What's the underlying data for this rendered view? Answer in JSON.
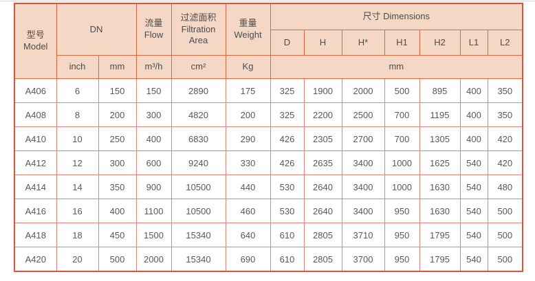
{
  "table": {
    "header": {
      "model": "型号\nModel",
      "dn": "DN",
      "flow": "流量\nFlow",
      "filtration": "过滤面积\nFiltration\nArea",
      "weight": "重量\nWeight",
      "dimensions": "尺寸 Dimensions",
      "dim_cols": [
        "D",
        "H",
        "H*",
        "H1",
        "H2",
        "L1",
        "L2"
      ],
      "units": {
        "inch": "inch",
        "mm": "mm",
        "flow": "m³/h",
        "area": "cm²",
        "weight": "Kg",
        "dims": "mm"
      }
    },
    "rows": [
      {
        "model": "A406",
        "dn_inch": "6",
        "dn_mm": "150",
        "flow": "150",
        "area": "2890",
        "weight": "175",
        "d": "325",
        "h": "1900",
        "h_star": "2000",
        "h1": "500",
        "h2": "895",
        "l1": "400",
        "l2": "350"
      },
      {
        "model": "A408",
        "dn_inch": "8",
        "dn_mm": "200",
        "flow": "300",
        "area": "4820",
        "weight": "200",
        "d": "325",
        "h": "2200",
        "h_star": "2500",
        "h1": "700",
        "h2": "1195",
        "l1": "400",
        "l2": "350"
      },
      {
        "model": "A410",
        "dn_inch": "10",
        "dn_mm": "250",
        "flow": "400",
        "area": "6830",
        "weight": "290",
        "d": "426",
        "h": "2305",
        "h_star": "2700",
        "h1": "700",
        "h2": "1305",
        "l1": "400",
        "l2": "420"
      },
      {
        "model": "A412",
        "dn_inch": "12",
        "dn_mm": "300",
        "flow": "600",
        "area": "9240",
        "weight": "330",
        "d": "426",
        "h": "2635",
        "h_star": "3400",
        "h1": "1000",
        "h2": "1625",
        "l1": "540",
        "l2": "420"
      },
      {
        "model": "A414",
        "dn_inch": "14",
        "dn_mm": "350",
        "flow": "900",
        "area": "10500",
        "weight": "440",
        "d": "530",
        "h": "2640",
        "h_star": "3400",
        "h1": "1000",
        "h2": "1630",
        "l1": "540",
        "l2": "480"
      },
      {
        "model": "A416",
        "dn_inch": "16",
        "dn_mm": "400",
        "flow": "1100",
        "area": "10500",
        "weight": "460",
        "d": "530",
        "h": "2640",
        "h_star": "3400",
        "h1": "950",
        "h2": "1630",
        "l1": "540",
        "l2": "500"
      },
      {
        "model": "A418",
        "dn_inch": "18",
        "dn_mm": "450",
        "flow": "1500",
        "area": "15340",
        "weight": "640",
        "d": "610",
        "h": "2805",
        "h_star": "3710",
        "h1": "950",
        "h2": "1795",
        "l1": "540",
        "l2": "500"
      },
      {
        "model": "A420",
        "dn_inch": "20",
        "dn_mm": "500",
        "flow": "2000",
        "area": "15340",
        "weight": "690",
        "d": "610",
        "h": "2805",
        "h_star": "3700",
        "h1": "950",
        "h2": "1795",
        "l1": "540",
        "l2": "500"
      }
    ]
  },
  "colors": {
    "header_background": "#f5d7c6",
    "header_border": "#e0653d",
    "body_border": "#e5837b",
    "outer_border": "#da5240",
    "header_text": "#4c4c4c",
    "body_text": "#595959"
  }
}
